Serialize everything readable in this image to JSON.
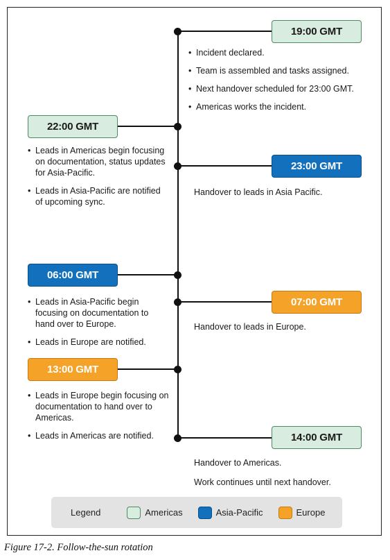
{
  "colors": {
    "americas_fill": "#d8ecdf",
    "americas_border": "#4a8a64",
    "asia_fill": "#1270bd",
    "asia_border": "#0b4f89",
    "europe_fill": "#f5a228",
    "europe_border": "#c67b12",
    "line": "#111111"
  },
  "events": [
    {
      "time": "19:00 GMT",
      "region": "americas",
      "bullets": [
        "Incident declared.",
        "Team is assembled and tasks assigned.",
        "Next handover scheduled for 23:00 GMT.",
        "Americas works the incident."
      ]
    },
    {
      "time": "22:00 GMT",
      "region": "americas",
      "bullets": [
        "Leads in Americas begin focusing on documentation, status updates for Asia-Pacific.",
        "Leads in Asia-Pacific are notified of upcoming sync."
      ]
    },
    {
      "time": "23:00 GMT",
      "region": "asia-pacific",
      "lines": [
        "Handover to leads in Asia Pacific."
      ]
    },
    {
      "time": "06:00 GMT",
      "region": "asia-pacific",
      "bullets": [
        "Leads in Asia-Pacific begin focusing on documentation to hand over to Europe.",
        "Leads in  Europe are notified."
      ]
    },
    {
      "time": "07:00 GMT",
      "region": "europe",
      "lines": [
        "Handover to leads in Europe."
      ]
    },
    {
      "time": "13:00 GMT",
      "region": "europe",
      "bullets": [
        "Leads in Europe begin focusing on documentation to hand over to Americas.",
        "Leads in  Americas are notified."
      ]
    },
    {
      "time": "14:00 GMT",
      "region": "americas",
      "lines": [
        "Handover to Americas.",
        "Work continues until next handover."
      ]
    }
  ],
  "legend": {
    "title": "Legend",
    "items": [
      {
        "label": "Americas",
        "region": "americas"
      },
      {
        "label": "Asia-Pacific",
        "region": "asia-pacific"
      },
      {
        "label": "Europe",
        "region": "europe"
      }
    ]
  },
  "caption": "Figure 17-2. Follow-the-sun rotation"
}
